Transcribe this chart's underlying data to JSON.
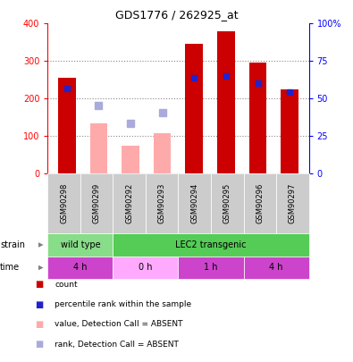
{
  "title": "GDS1776 / 262925_at",
  "samples": [
    "GSM90298",
    "GSM90299",
    "GSM90292",
    "GSM90293",
    "GSM90294",
    "GSM90295",
    "GSM90296",
    "GSM90297"
  ],
  "counts": [
    255,
    null,
    null,
    null,
    345,
    380,
    295,
    225
  ],
  "counts_absent": [
    null,
    135,
    75,
    108,
    null,
    null,
    null,
    null
  ],
  "percentile_ranks": [
    228,
    null,
    null,
    null,
    255,
    260,
    242,
    218
  ],
  "percentile_ranks_absent": [
    null,
    183,
    135,
    162,
    null,
    null,
    null,
    null
  ],
  "ylim_left": [
    0,
    400
  ],
  "ylim_right": [
    0,
    100
  ],
  "yticks_left": [
    0,
    100,
    200,
    300,
    400
  ],
  "yticks_right": [
    0,
    25,
    50,
    75,
    100
  ],
  "ytick_labels_right": [
    "0",
    "25",
    "50",
    "75",
    "100%"
  ],
  "strain_groups": [
    {
      "label": "wild type",
      "start": 0,
      "end": 2,
      "color": "#88dd88"
    },
    {
      "label": "LEC2 transgenic",
      "start": 2,
      "end": 8,
      "color": "#55cc55"
    }
  ],
  "time_groups": [
    {
      "label": "4 h",
      "start": 0,
      "end": 2,
      "color": "#cc44cc"
    },
    {
      "label": "0 h",
      "start": 2,
      "end": 4,
      "color": "#ffaaff"
    },
    {
      "label": "1 h",
      "start": 4,
      "end": 6,
      "color": "#cc44cc"
    },
    {
      "label": "4 h",
      "start": 6,
      "end": 8,
      "color": "#cc44cc"
    }
  ],
  "count_color": "#cc0000",
  "count_absent_color": "#ffaaaa",
  "rank_color": "#2222cc",
  "rank_absent_color": "#aaaadd",
  "bg_color": "#ffffff",
  "plot_bg_color": "#ffffff",
  "grid_color": "#888888",
  "tick_label_bg": "#cccccc",
  "legend_items": [
    {
      "color": "#cc0000",
      "marker": "square",
      "label": "count"
    },
    {
      "color": "#2222cc",
      "marker": "square",
      "label": "percentile rank within the sample"
    },
    {
      "color": "#ffaaaa",
      "marker": "square",
      "label": "value, Detection Call = ABSENT"
    },
    {
      "color": "#aaaadd",
      "marker": "square",
      "label": "rank, Detection Call = ABSENT"
    }
  ]
}
